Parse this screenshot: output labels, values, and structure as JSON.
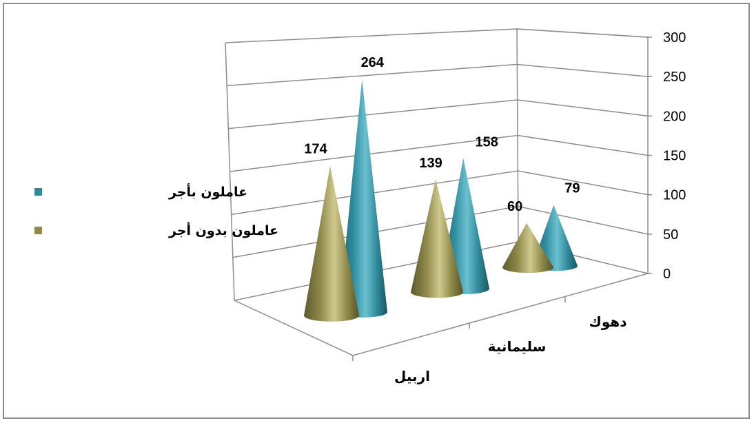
{
  "chart_data": {
    "type": "bar",
    "shape": "cone-3d",
    "categories": [
      "اربيل",
      "سليمانية",
      "دهوك"
    ],
    "series": [
      {
        "name": "عاملون بدون  أجر",
        "values": [
          174,
          139,
          60
        ],
        "color": "#8f8a4a"
      },
      {
        "name": "عاملون بأجر",
        "values": [
          264,
          158,
          79
        ],
        "color": "#2f8a9a"
      }
    ],
    "ylim": [
      0,
      300
    ],
    "yticks": [
      "0",
      "50",
      "100",
      "150",
      "200",
      "250",
      "300"
    ],
    "data_labels": true,
    "grid": true,
    "legend_position": "left"
  }
}
